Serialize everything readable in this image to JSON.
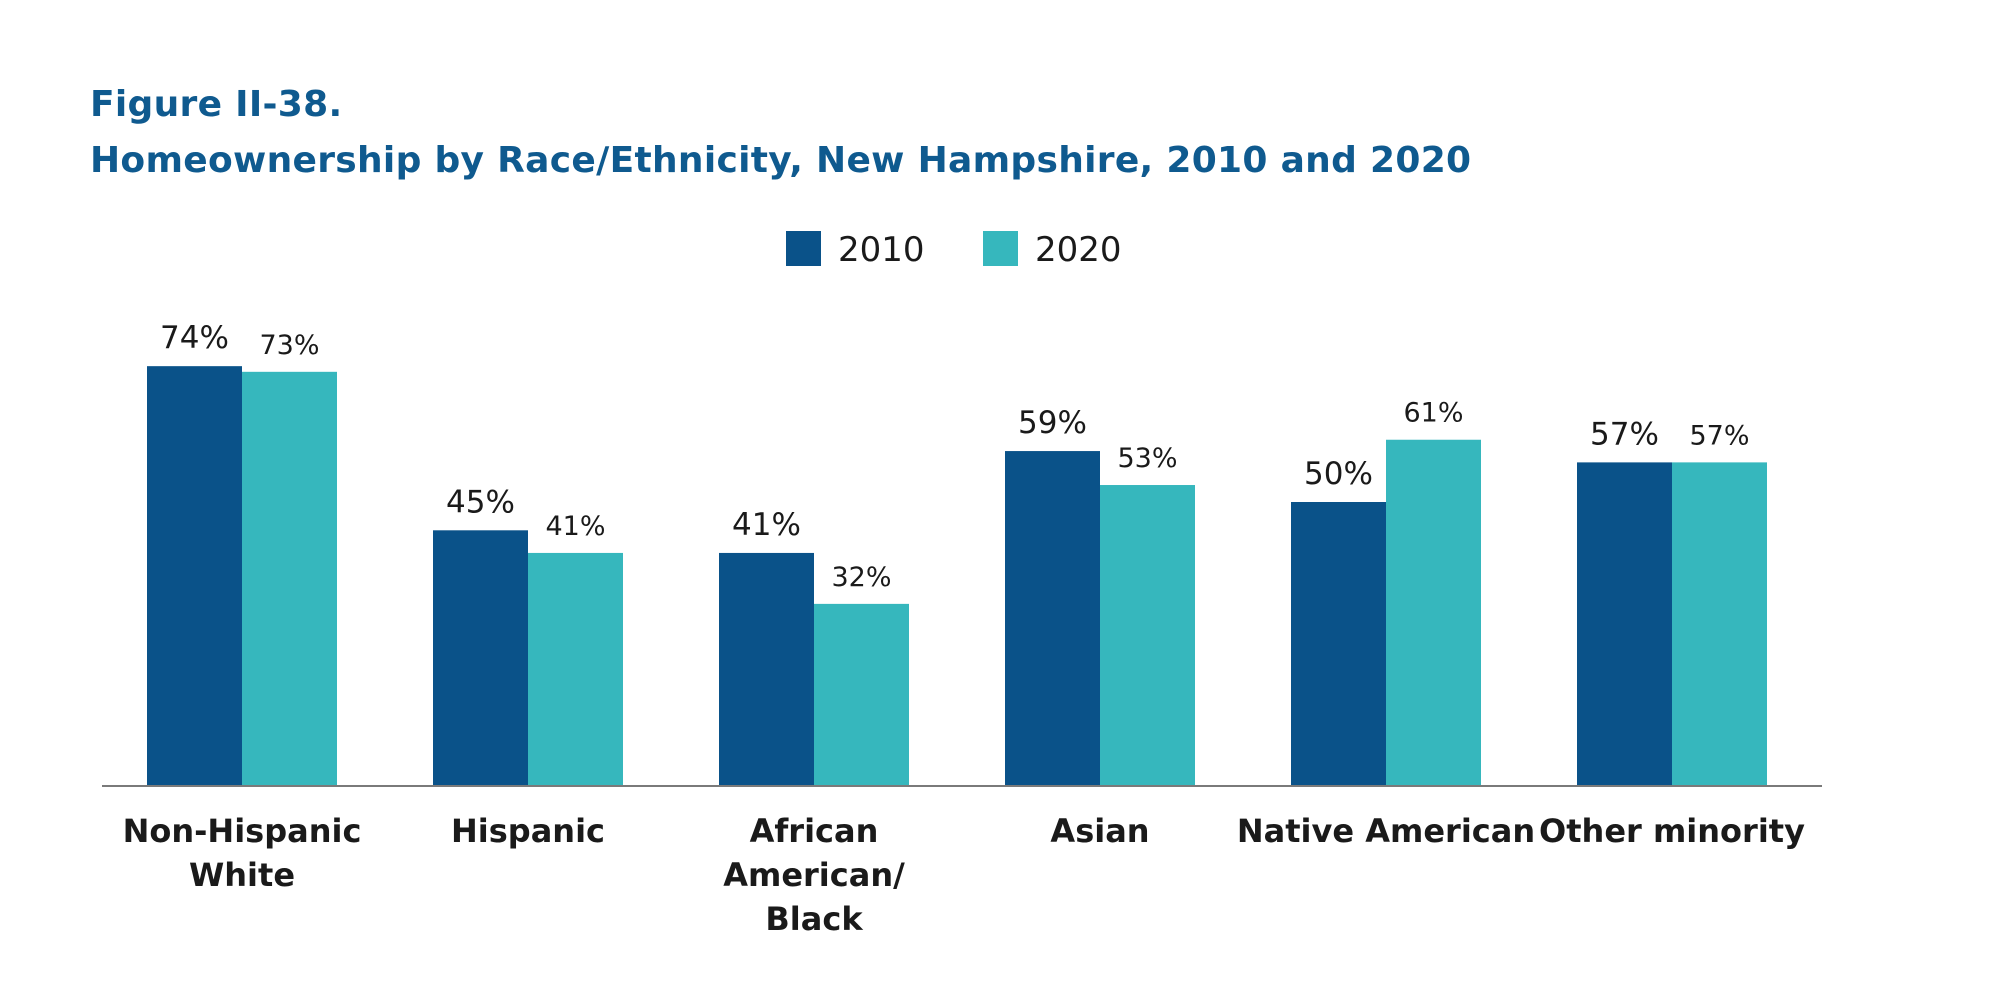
{
  "figure": {
    "label": "Figure II-38.",
    "title": "Homeownership by Race/Ethnicity, New Hampshire, 2010 and 2020"
  },
  "chart_data": {
    "type": "bar",
    "title": "Homeownership by Race/Ethnicity, New Hampshire, 2010 and 2020",
    "xlabel": "",
    "ylabel": "",
    "categories": [
      [
        "Non-Hispanic",
        "White"
      ],
      [
        "Hispanic"
      ],
      [
        "African",
        "American/",
        "Black"
      ],
      [
        "Asian"
      ],
      [
        "Native American"
      ],
      [
        "Other minority"
      ]
    ],
    "series": [
      {
        "name": "2010",
        "color": "#0a5289",
        "values": [
          74,
          45,
          41,
          59,
          50,
          57
        ],
        "labels": [
          "74%",
          "45%",
          "41%",
          "59%",
          "50%",
          "57%"
        ]
      },
      {
        "name": "2020",
        "color": "#36b7bd",
        "values": [
          73,
          41,
          32,
          53,
          61,
          57
        ],
        "labels": [
          "73%",
          "41%",
          "32%",
          "53%",
          "61%",
          "57%"
        ]
      }
    ],
    "ylim": [
      0,
      80
    ],
    "grid": false,
    "legend_position": "top-center",
    "axis_color": "#7a7a7a"
  }
}
